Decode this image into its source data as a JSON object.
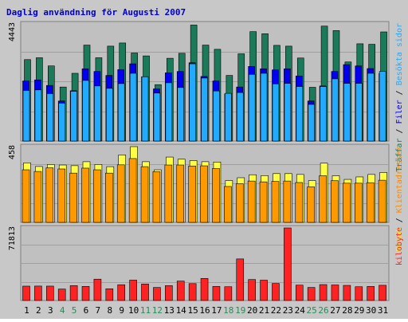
{
  "colors": {
    "background": "#c8c8c8",
    "panel": "#c0c0c0",
    "title": "#0000cc",
    "hits_main": "#1a7a5a",
    "hits_top": "#0000ee",
    "hits_front": "#22aaff",
    "kb": "#ff2222",
    "visits_back": "#ffff44",
    "visits_front": "#ff9900",
    "day_normal": "#000000",
    "day_weekend": "#2a8a5a"
  },
  "chart_data": {
    "type": "bar",
    "title": "Daglig användning för Augusti 2007",
    "x": [
      "1",
      "2",
      "3",
      "4",
      "5",
      "6",
      "7",
      "8",
      "9",
      "10",
      "11",
      "12",
      "13",
      "14",
      "15",
      "16",
      "17",
      "18",
      "19",
      "20",
      "21",
      "22",
      "23",
      "24",
      "25",
      "26",
      "27",
      "28",
      "29",
      "30",
      "31"
    ],
    "weekend_days": [
      4,
      5,
      11,
      12,
      18,
      19,
      25,
      26
    ],
    "panels": [
      {
        "id": "hits",
        "max_label": "4443",
        "ymax": 4443,
        "ylabels": [
          {
            "text": "Träffar",
            "color": "#1a7a5a"
          },
          {
            "text": " / ",
            "color": "#000000"
          },
          {
            "text": "Filer",
            "color": "#0000ee"
          },
          {
            "text": " / ",
            "color": "#000000"
          },
          {
            "text": "Besökta sidor",
            "color": "#22aaff"
          }
        ],
        "series": [
          {
            "key": "traffar",
            "values": [
              3090,
              3160,
              2850,
              2050,
              2570,
              3640,
              3160,
              3600,
              3720,
              3340,
              3230,
              2140,
              3140,
              3330,
              4400,
              3640,
              3480,
              2490,
              3310,
              4150,
              4070,
              3630,
              3600,
              3150,
              2040,
              4360,
              4190,
              3000,
              3690,
              3670,
              4140
            ]
          },
          {
            "key": "filer",
            "values": [
              2280,
              2320,
              2110,
              1520,
              1910,
              2740,
              2640,
              2490,
              2710,
              2930,
              2440,
              1980,
              2590,
              2640,
              2970,
              2450,
              2280,
              1790,
              2050,
              2830,
              2740,
              2700,
              2740,
              2470,
              1520,
              2090,
              2640,
              2900,
              2850,
              2750,
              2560
            ]
          },
          {
            "key": "sidor",
            "values": [
              1920,
              1940,
              1800,
              1440,
              1890,
              2300,
              2090,
              2000,
              2180,
              2570,
              2440,
              1820,
              2210,
              2030,
              2930,
              2390,
              1900,
              1810,
              1840,
              2530,
              2570,
              2170,
              2190,
              2070,
              1390,
              2070,
              2360,
              2190,
              2190,
              2570,
              2640
            ]
          }
        ]
      },
      {
        "id": "visits",
        "max_label": "458",
        "ymax": 458,
        "ylabels": [
          {
            "text": "Besök",
            "color": "#ffee00"
          },
          {
            "text": " / ",
            "color": "#000000"
          },
          {
            "text": "Klientadresser",
            "color": "#ff8800"
          }
        ],
        "series": [
          {
            "key": "besok",
            "values": [
              360,
              338,
              350,
              347,
              343,
              367,
              350,
              337,
              408,
              458,
              367,
              318,
              395,
              382,
              374,
              367,
              365,
              253,
              270,
              288,
              283,
              295,
              295,
              290,
              253,
              358,
              282,
              260,
              275,
              290,
              302
            ]
          },
          {
            "key": "klienter",
            "values": [
              318,
              308,
              330,
              323,
              298,
              328,
              318,
              298,
              348,
              386,
              337,
              307,
              347,
              347,
              341,
              342,
              326,
              217,
              234,
              250,
              245,
              248,
              250,
              241,
              215,
              282,
              252,
              237,
              237,
              240,
              255
            ]
          }
        ]
      },
      {
        "id": "kb",
        "max_label": "71813",
        "ymax": 71813,
        "ylabels": [
          {
            "text": "kilobyte",
            "color": "#ff2222"
          }
        ],
        "series": [
          {
            "key": "kilobyte",
            "values": [
              14210,
              14280,
              14240,
              11300,
              14710,
              13950,
              21120,
              11600,
              15590,
              20160,
              16320,
              12890,
              14710,
              19230,
              16720,
              21850,
              13920,
              13620,
              41150,
              20750,
              20110,
              16870,
              71813,
              15200,
              12890,
              15730,
              15380,
              14960,
              13620,
              13910,
              15050
            ]
          }
        ]
      }
    ]
  }
}
